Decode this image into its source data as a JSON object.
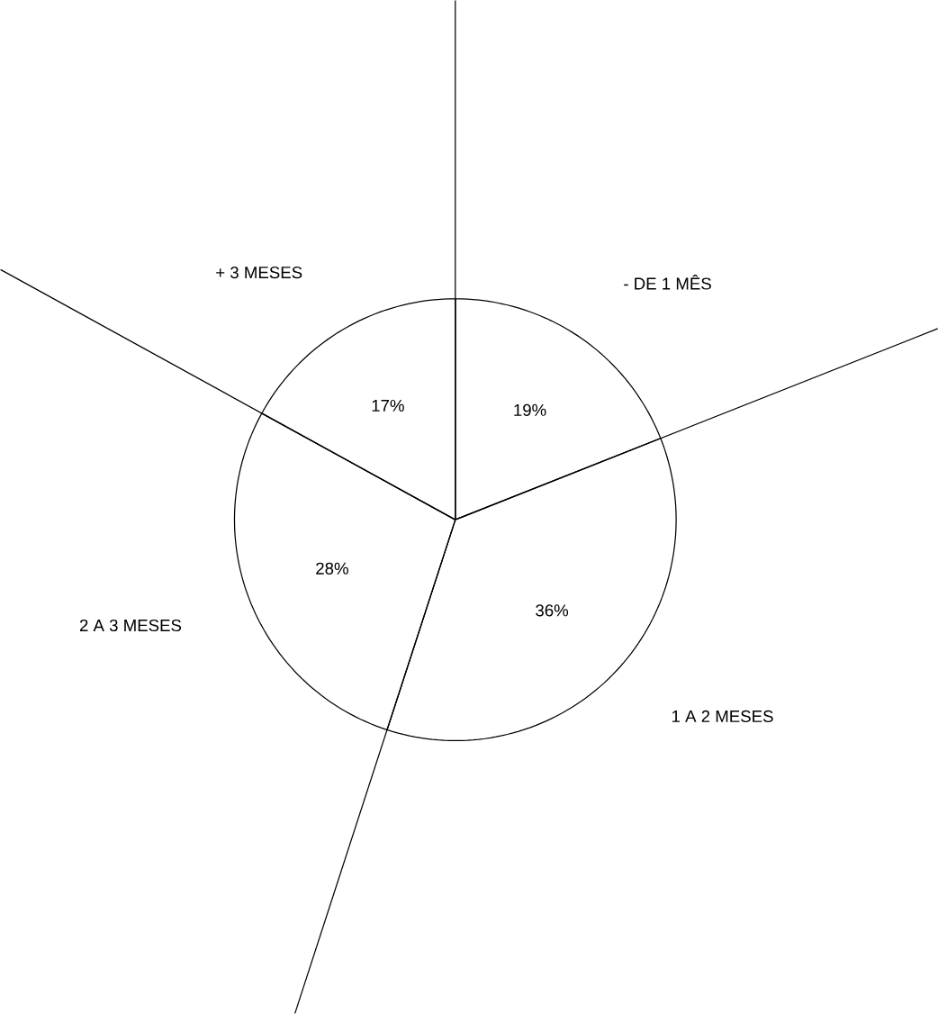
{
  "chart_data": {
    "type": "pie",
    "categories": [
      "- DE 1 MÊS",
      "1 A 2 MESES",
      "2 A 3 MESES",
      "+ 3 MESES"
    ],
    "values": [
      19,
      36,
      28,
      17
    ],
    "value_labels": [
      "19%",
      "36%",
      "28%",
      "17%"
    ],
    "colors": [
      "#ffffff",
      "#ffffff",
      "#ffffff",
      "#ffffff"
    ]
  }
}
